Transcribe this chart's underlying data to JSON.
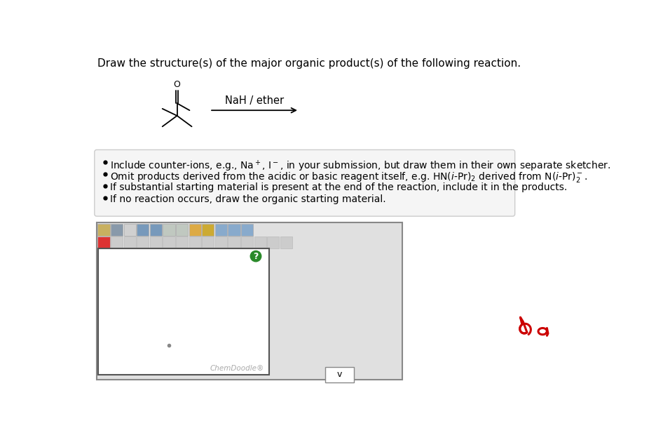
{
  "title": "Draw the structure(s) of the major organic product(s) of the following reaction.",
  "reagent": "NaH / ether",
  "page_background": "#ffffff",
  "bullet_texts": [
    "Include counter-ions, e.g., Na$^+$, I$^-$, in your submission, but draw them in their own separate sketcher.",
    "Omit products derived from the acidic or basic reagent itself, e.g. HN($i$-Pr)$_2$ derived from N($i$-Pr)$_2^-$.",
    "If substantial starting material is present at the end of the reaction, include it in the products.",
    "If no reaction occurs, draw the organic starting material."
  ],
  "title_fontsize": 11,
  "bullet_fontsize": 10,
  "chemdoodle_label": "ChemDoodle®",
  "annotation_color": "#cc0000",
  "mol_color": "#000000",
  "toolbar_bg": "#e0e0e0",
  "box_bg": "#f5f5f5",
  "box_edge": "#cccccc",
  "drawing_area_bg": "#ffffff",
  "drawing_area_edge": "#555555",
  "green_btn": "#2a8a2a",
  "dropdown_edge": "#888888"
}
